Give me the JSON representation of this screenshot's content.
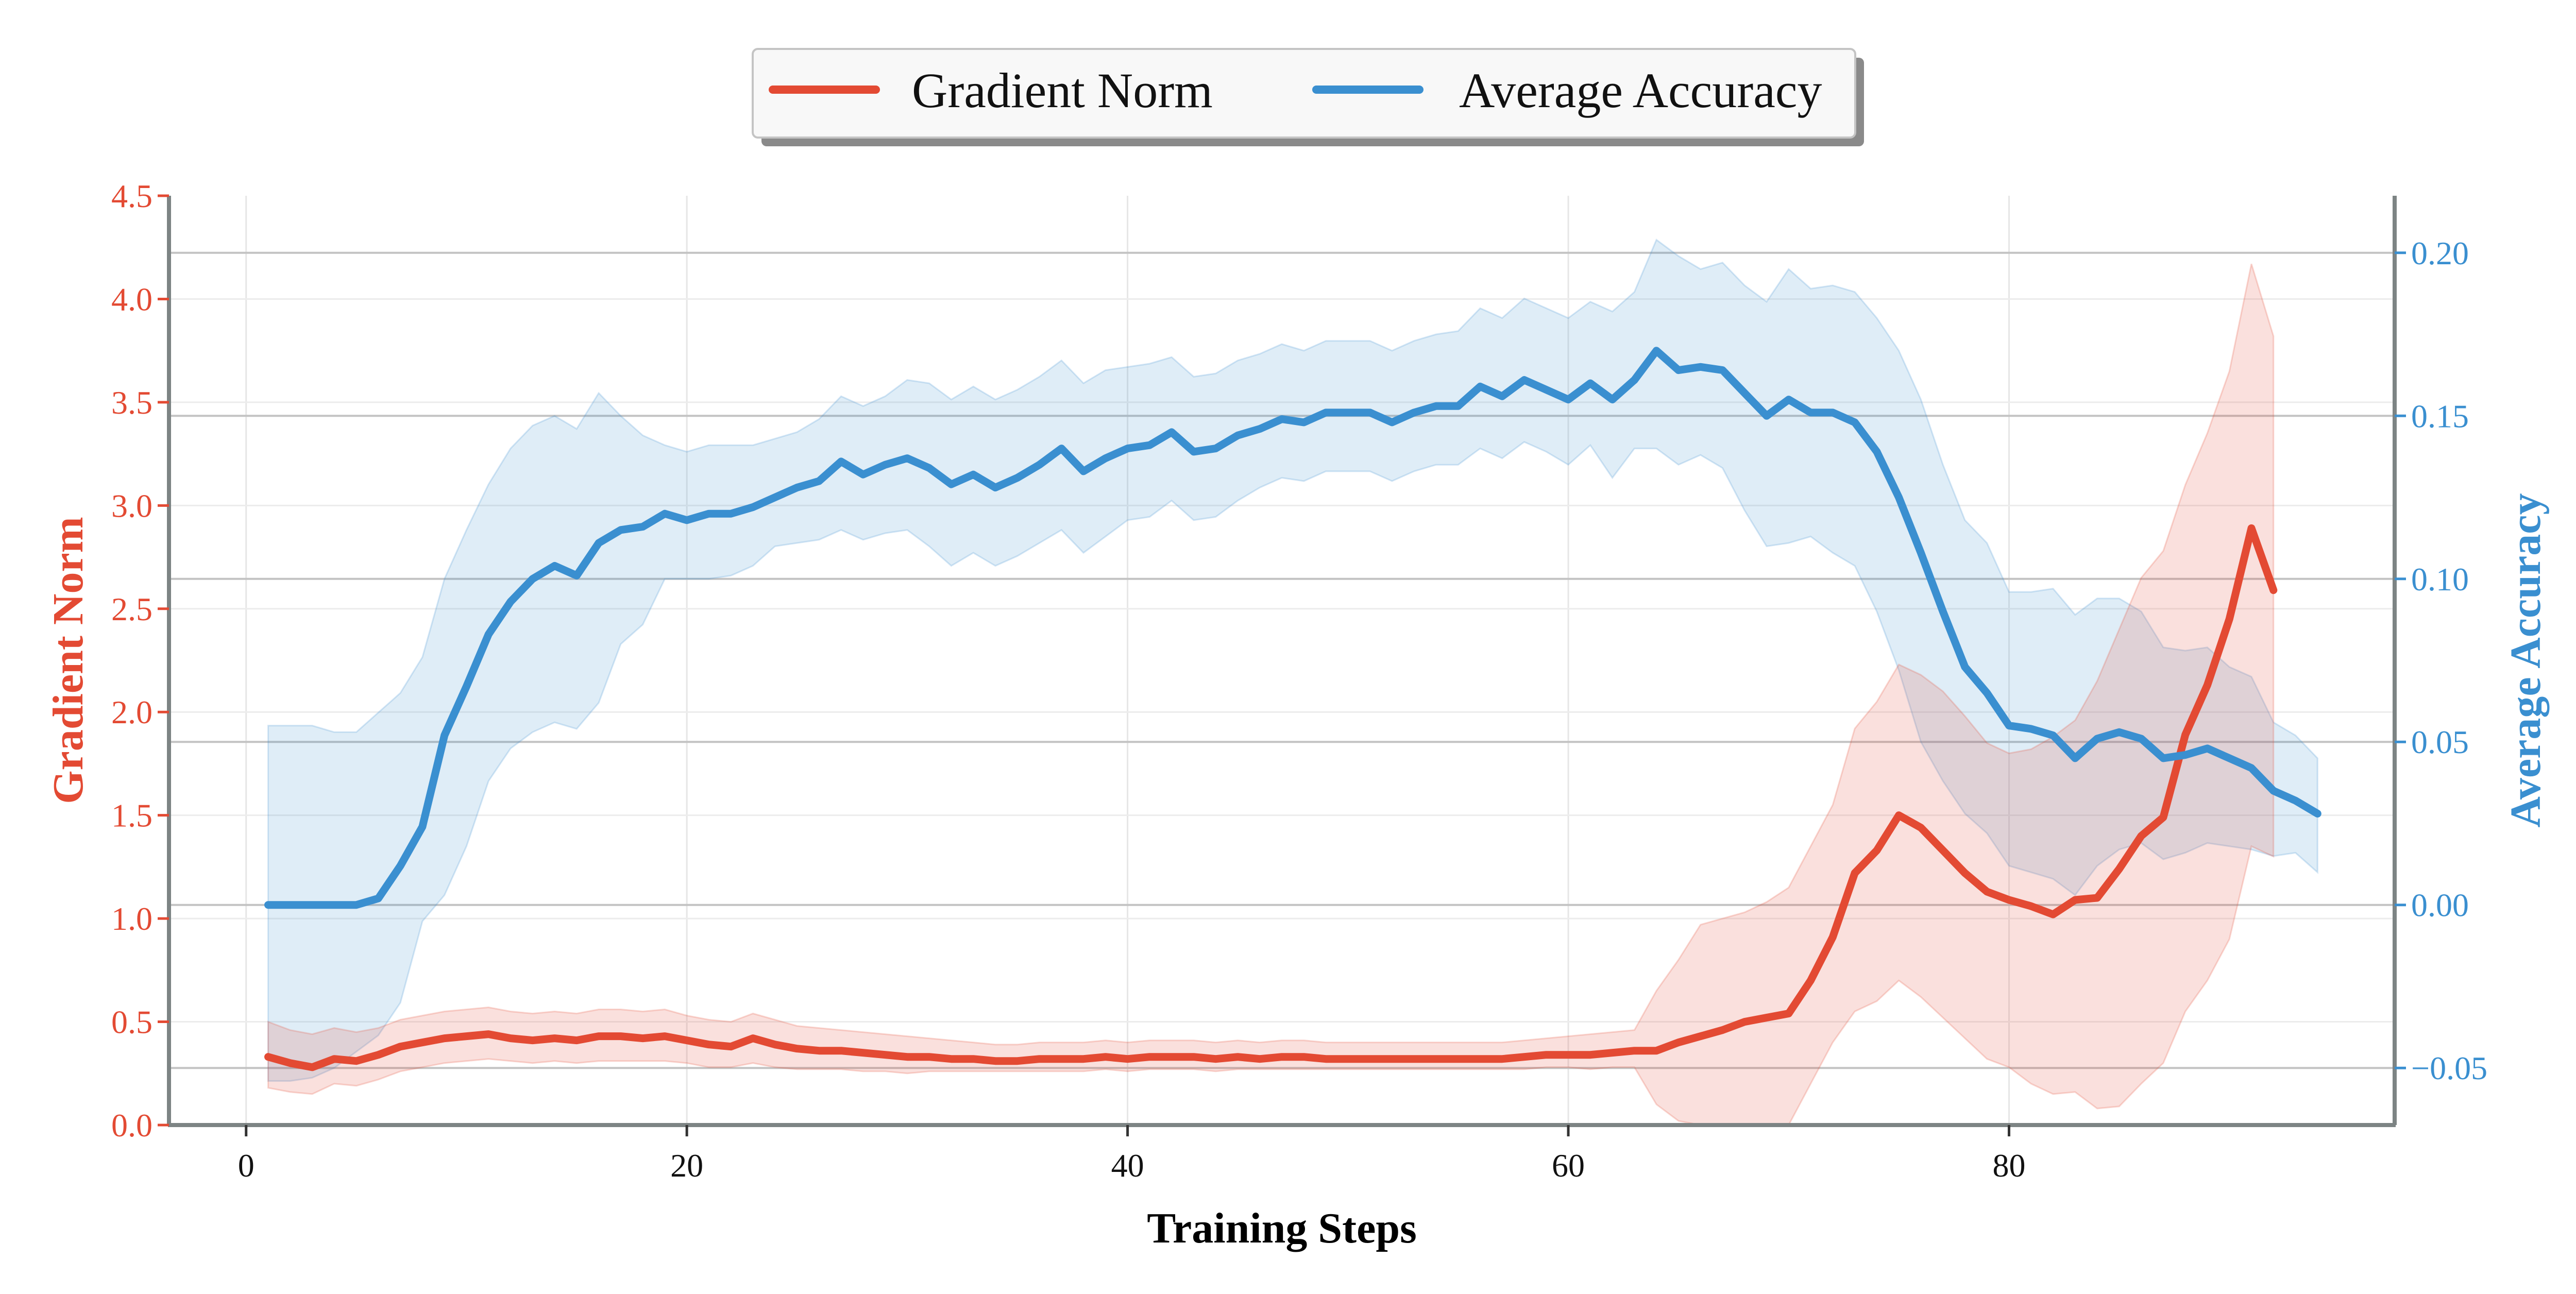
{
  "chart_data": {
    "type": "line",
    "xlabel": "Training Steps",
    "ylabel_left": "Gradient Norm",
    "ylabel_right": "Average Accuracy",
    "xlim": [
      -3.5,
      97.5
    ],
    "ylim_left": [
      0,
      4.5
    ],
    "ylim_right": [
      -0.0675,
      0.2175
    ],
    "x_ticks": [
      0,
      20,
      40,
      60,
      80
    ],
    "y_ticks_left": [
      "0.0",
      "0.5",
      "1.0",
      "1.5",
      "2.0",
      "2.5",
      "3.0",
      "3.5",
      "4.0",
      "4.5"
    ],
    "y_ticks_right": [
      "−0.05",
      "0.00",
      "0.05",
      "0.10",
      "0.15",
      "0.20"
    ],
    "y_ticks_left_values": [
      0,
      0.5,
      1.0,
      1.5,
      2.0,
      2.5,
      3.0,
      3.5,
      4.0,
      4.5
    ],
    "y_ticks_right_values": [
      -0.05,
      0.0,
      0.05,
      0.1,
      0.15,
      0.2
    ],
    "legend": {
      "placement": "top-center",
      "entries": [
        {
          "label": "Gradient Norm",
          "color": "#e34a33"
        },
        {
          "label": "Average Accuracy",
          "color": "#3a8fd0"
        }
      ]
    },
    "grid": true,
    "series": [
      {
        "name": "Gradient Norm",
        "axis": "left",
        "color": "#e34a33",
        "x_start": 1,
        "values": [
          0.33,
          0.3,
          0.28,
          0.32,
          0.31,
          0.34,
          0.38,
          0.4,
          0.42,
          0.43,
          0.44,
          0.42,
          0.41,
          0.42,
          0.41,
          0.43,
          0.43,
          0.42,
          0.43,
          0.41,
          0.39,
          0.38,
          0.42,
          0.39,
          0.37,
          0.36,
          0.36,
          0.35,
          0.34,
          0.33,
          0.33,
          0.32,
          0.32,
          0.31,
          0.31,
          0.32,
          0.32,
          0.32,
          0.33,
          0.32,
          0.33,
          0.33,
          0.33,
          0.32,
          0.33,
          0.32,
          0.33,
          0.33,
          0.32,
          0.32,
          0.32,
          0.32,
          0.32,
          0.32,
          0.32,
          0.32,
          0.32,
          0.33,
          0.34,
          0.34,
          0.34,
          0.35,
          0.36,
          0.36,
          0.4,
          0.43,
          0.46,
          0.5,
          0.52,
          0.54,
          0.7,
          0.91,
          1.22,
          1.33,
          1.5,
          1.44,
          1.33,
          1.22,
          1.13,
          1.09,
          1.06,
          1.02,
          1.09,
          1.1,
          1.24,
          1.4,
          1.49,
          1.89,
          2.13,
          2.45,
          2.89,
          2.59
        ],
        "lower": [
          0.18,
          0.16,
          0.15,
          0.2,
          0.19,
          0.22,
          0.26,
          0.28,
          0.3,
          0.31,
          0.32,
          0.31,
          0.3,
          0.31,
          0.3,
          0.31,
          0.31,
          0.31,
          0.31,
          0.3,
          0.28,
          0.28,
          0.3,
          0.28,
          0.27,
          0.27,
          0.27,
          0.26,
          0.26,
          0.25,
          0.26,
          0.26,
          0.26,
          0.26,
          0.26,
          0.26,
          0.26,
          0.26,
          0.27,
          0.26,
          0.27,
          0.27,
          0.27,
          0.26,
          0.27,
          0.27,
          0.27,
          0.27,
          0.27,
          0.27,
          0.27,
          0.27,
          0.27,
          0.27,
          0.27,
          0.27,
          0.27,
          0.27,
          0.28,
          0.28,
          0.27,
          0.28,
          0.28,
          0.1,
          0.02,
          0.0,
          0.0,
          0.0,
          0.0,
          0.0,
          0.2,
          0.4,
          0.55,
          0.6,
          0.7,
          0.62,
          0.52,
          0.42,
          0.32,
          0.28,
          0.2,
          0.15,
          0.16,
          0.08,
          0.09,
          0.2,
          0.3,
          0.55,
          0.7,
          0.9,
          1.35,
          1.3
        ],
        "upper": [
          0.5,
          0.46,
          0.44,
          0.47,
          0.45,
          0.47,
          0.51,
          0.53,
          0.55,
          0.56,
          0.57,
          0.55,
          0.54,
          0.55,
          0.54,
          0.56,
          0.56,
          0.55,
          0.56,
          0.53,
          0.51,
          0.5,
          0.54,
          0.51,
          0.48,
          0.47,
          0.46,
          0.45,
          0.44,
          0.43,
          0.42,
          0.41,
          0.4,
          0.39,
          0.39,
          0.4,
          0.4,
          0.4,
          0.41,
          0.4,
          0.41,
          0.41,
          0.41,
          0.4,
          0.41,
          0.4,
          0.41,
          0.41,
          0.4,
          0.4,
          0.4,
          0.4,
          0.4,
          0.4,
          0.4,
          0.4,
          0.4,
          0.41,
          0.42,
          0.43,
          0.44,
          0.45,
          0.46,
          0.65,
          0.8,
          0.97,
          1.0,
          1.03,
          1.08,
          1.15,
          1.35,
          1.55,
          1.92,
          2.05,
          2.23,
          2.18,
          2.1,
          1.98,
          1.85,
          1.8,
          1.82,
          1.88,
          1.96,
          2.15,
          2.4,
          2.65,
          2.78,
          3.1,
          3.35,
          3.65,
          4.17,
          3.82
        ]
      },
      {
        "name": "Average Accuracy",
        "axis": "right",
        "color": "#3a8fd0",
        "x_start": 1,
        "values": [
          0.0,
          0.0,
          0.0,
          0.0,
          0.0,
          0.002,
          0.012,
          0.024,
          0.052,
          0.067,
          0.083,
          0.093,
          0.1,
          0.104,
          0.101,
          0.111,
          0.115,
          0.116,
          0.12,
          0.118,
          0.12,
          0.12,
          0.122,
          0.125,
          0.128,
          0.13,
          0.136,
          0.132,
          0.135,
          0.137,
          0.134,
          0.129,
          0.132,
          0.128,
          0.131,
          0.135,
          0.14,
          0.133,
          0.137,
          0.14,
          0.141,
          0.145,
          0.139,
          0.14,
          0.144,
          0.146,
          0.149,
          0.148,
          0.151,
          0.151,
          0.151,
          0.148,
          0.151,
          0.153,
          0.153,
          0.159,
          0.156,
          0.161,
          0.158,
          0.155,
          0.16,
          0.155,
          0.161,
          0.17,
          0.164,
          0.165,
          0.164,
          0.157,
          0.15,
          0.155,
          0.151,
          0.151,
          0.148,
          0.139,
          0.125,
          0.108,
          0.09,
          0.073,
          0.065,
          0.055,
          0.054,
          0.052,
          0.045,
          0.051,
          0.053,
          0.051,
          0.045,
          0.046,
          0.048,
          0.045,
          0.042,
          0.035,
          0.032,
          0.028
        ],
        "lower": [
          -0.054,
          -0.054,
          -0.053,
          -0.05,
          -0.045,
          -0.04,
          -0.03,
          -0.005,
          0.003,
          0.018,
          0.038,
          0.048,
          0.053,
          0.056,
          0.054,
          0.062,
          0.08,
          0.086,
          0.1,
          0.1,
          0.1,
          0.101,
          0.104,
          0.11,
          0.111,
          0.112,
          0.115,
          0.112,
          0.114,
          0.115,
          0.11,
          0.104,
          0.108,
          0.104,
          0.107,
          0.111,
          0.115,
          0.108,
          0.113,
          0.118,
          0.119,
          0.124,
          0.118,
          0.119,
          0.124,
          0.128,
          0.131,
          0.13,
          0.133,
          0.133,
          0.133,
          0.13,
          0.133,
          0.135,
          0.135,
          0.14,
          0.137,
          0.142,
          0.139,
          0.135,
          0.141,
          0.131,
          0.14,
          0.14,
          0.135,
          0.138,
          0.134,
          0.121,
          0.11,
          0.111,
          0.113,
          0.108,
          0.104,
          0.09,
          0.072,
          0.05,
          0.038,
          0.028,
          0.022,
          0.012,
          0.01,
          0.008,
          0.003,
          0.012,
          0.017,
          0.019,
          0.014,
          0.016,
          0.019,
          0.018,
          0.017,
          0.015,
          0.016,
          0.01
        ],
        "upper": [
          0.055,
          0.055,
          0.055,
          0.053,
          0.053,
          0.059,
          0.065,
          0.076,
          0.1,
          0.115,
          0.129,
          0.14,
          0.147,
          0.15,
          0.146,
          0.157,
          0.15,
          0.144,
          0.141,
          0.139,
          0.141,
          0.141,
          0.141,
          0.143,
          0.145,
          0.149,
          0.156,
          0.153,
          0.156,
          0.161,
          0.16,
          0.155,
          0.159,
          0.155,
          0.158,
          0.162,
          0.167,
          0.16,
          0.164,
          0.165,
          0.166,
          0.168,
          0.162,
          0.163,
          0.167,
          0.169,
          0.172,
          0.17,
          0.173,
          0.173,
          0.173,
          0.17,
          0.173,
          0.175,
          0.176,
          0.183,
          0.18,
          0.186,
          0.183,
          0.18,
          0.185,
          0.182,
          0.188,
          0.204,
          0.199,
          0.195,
          0.197,
          0.19,
          0.185,
          0.195,
          0.189,
          0.19,
          0.188,
          0.18,
          0.17,
          0.155,
          0.135,
          0.118,
          0.111,
          0.096,
          0.096,
          0.097,
          0.089,
          0.094,
          0.094,
          0.09,
          0.079,
          0.078,
          0.079,
          0.073,
          0.07,
          0.056,
          0.052,
          0.045
        ]
      }
    ]
  }
}
